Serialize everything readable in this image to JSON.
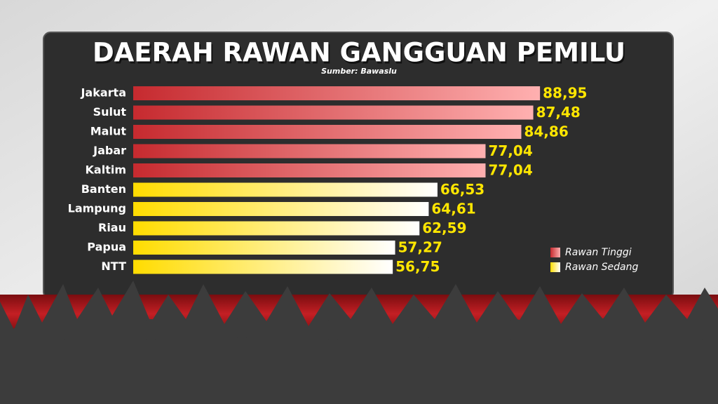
{
  "chart_data": {
    "type": "hbar",
    "title": "DAERAH RAWAN GANGGUAN PEMILU",
    "subtitle": "Sumber: Bawaslu",
    "categories": [
      "Jakarta",
      "Sulut",
      "Malut",
      "Jabar",
      "Kaltim",
      "Banten",
      "Lampung",
      "Riau",
      "Papua",
      "NTT"
    ],
    "series": [
      {
        "name": "Rawan Tinggi",
        "color": "#c62a2f",
        "values": [
          88.95,
          87.48,
          84.86,
          77.04,
          77.04,
          null,
          null,
          null,
          null,
          null
        ],
        "value_labels": [
          "88,95",
          "87,48",
          "84,86",
          "77,04",
          "77,04",
          null,
          null,
          null,
          null,
          null
        ]
      },
      {
        "name": "Rawan Sedang",
        "color": "#ffdc00",
        "values": [
          null,
          null,
          null,
          null,
          null,
          66.53,
          64.61,
          62.59,
          57.27,
          56.75
        ],
        "value_labels": [
          null,
          null,
          null,
          null,
          null,
          "66,53",
          "64,61",
          "62,59",
          "57,27",
          "56,75"
        ]
      }
    ],
    "xlim": [
      0,
      90
    ]
  }
}
